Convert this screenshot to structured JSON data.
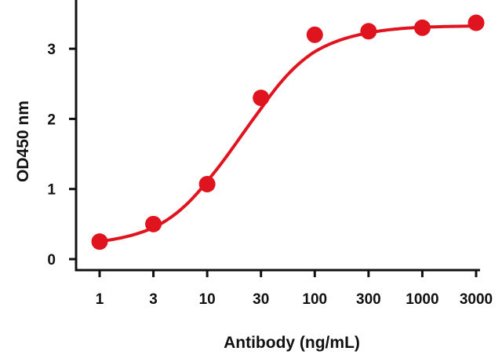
{
  "chart_data": {
    "type": "line",
    "title": "",
    "xlabel": "Antibody (ng/mL)",
    "ylabel": "OD450 nm",
    "x_scale": "log",
    "x": [
      1,
      3,
      10,
      30,
      100,
      300,
      1000,
      3000
    ],
    "x_tick_labels": [
      "1",
      "3",
      "10",
      "30",
      "100",
      "300",
      "1000",
      "3000"
    ],
    "y_ticks": [
      0,
      1,
      2,
      3
    ],
    "y_tick_labels": [
      "0",
      "1",
      "2",
      "3"
    ],
    "ylim": [
      -0.1,
      3.7
    ],
    "grid": false,
    "legend": "none",
    "series": [
      {
        "color": "#e0141e",
        "values": [
          0.25,
          0.5,
          1.07,
          2.3,
          3.2,
          3.25,
          3.3,
          3.37
        ]
      }
    ]
  }
}
